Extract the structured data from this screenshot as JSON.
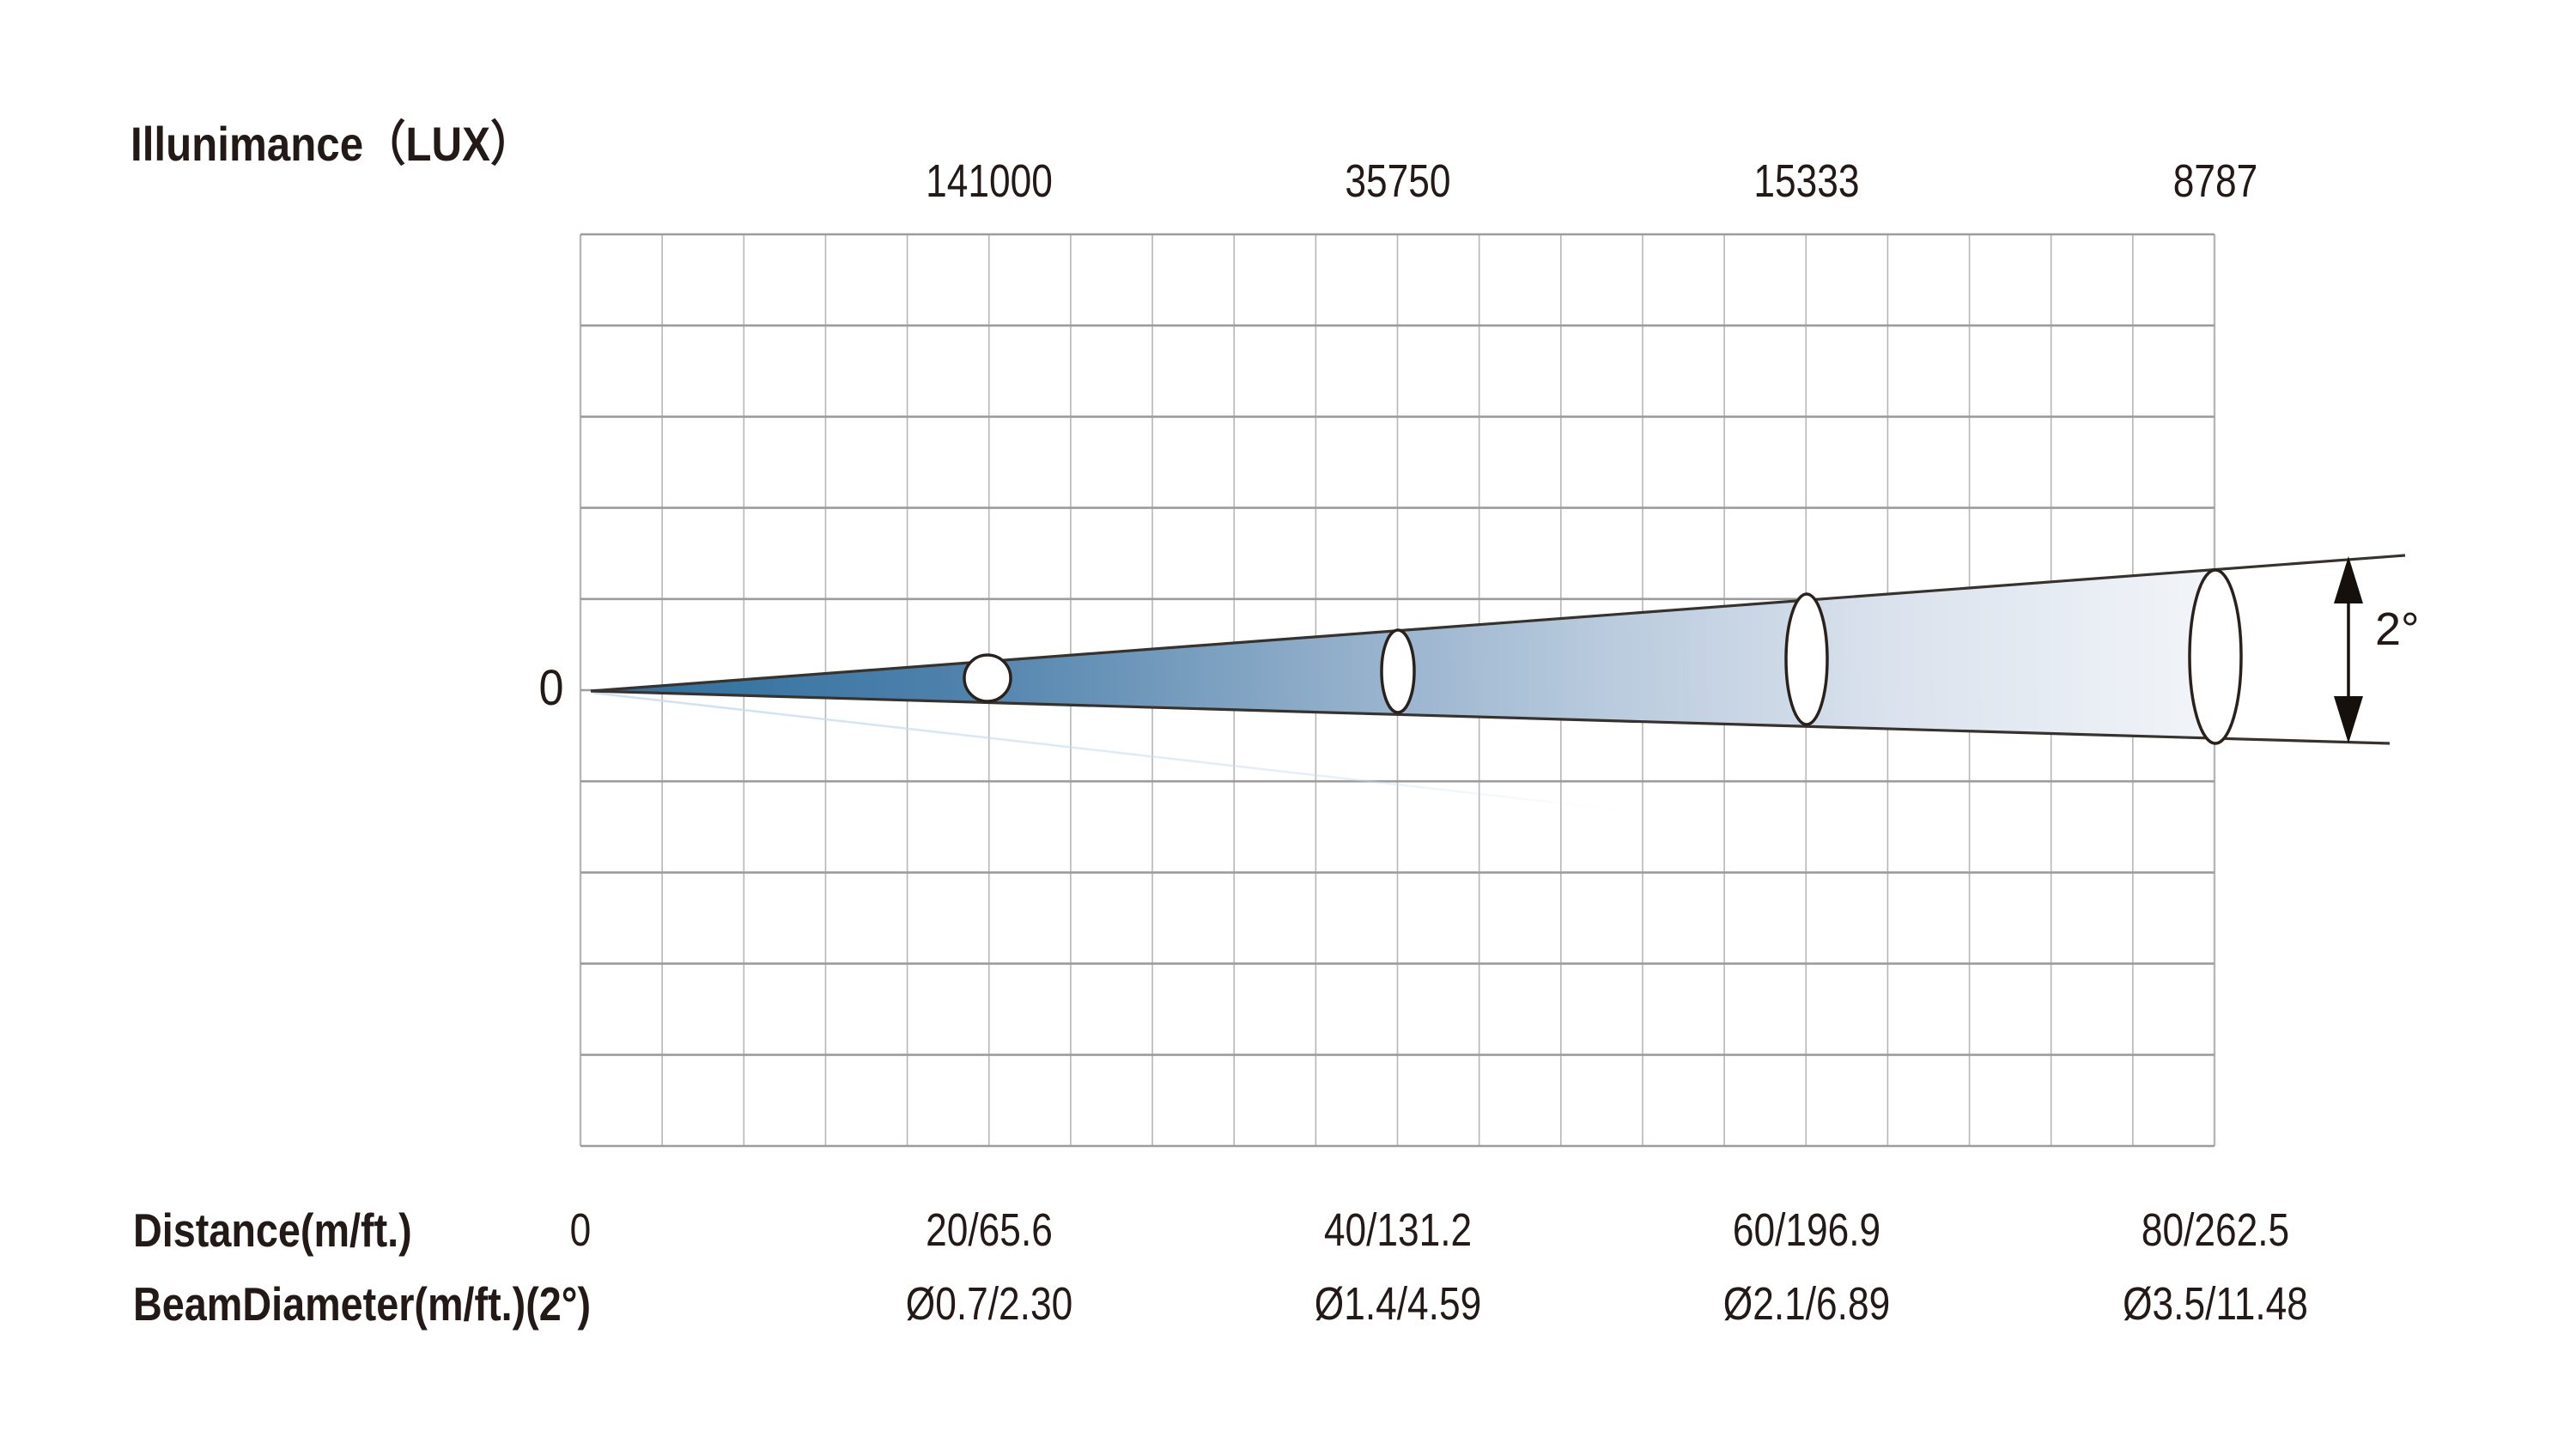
{
  "page": {
    "background": "#ffffff"
  },
  "chart_data": {
    "type": "beam-diagram",
    "title": "Illunimance（LUX）",
    "beam_angle_label": "2°",
    "beam_angle_deg": 2,
    "axis": {
      "origin_illuminance": "0",
      "distance_row_label": "Distance(m/ft.)",
      "diameter_row_label": "BeamDiameter(m/ft.)(2°)",
      "distance_origin": "0"
    },
    "points": [
      {
        "distance_m_ft": "20/65.6",
        "illuminance_lux": "141000",
        "beam_diameter_m_ft": "Ø0.7/2.30"
      },
      {
        "distance_m_ft": "40/131.2",
        "illuminance_lux": "35750",
        "beam_diameter_m_ft": "Ø1.4/4.59"
      },
      {
        "distance_m_ft": "60/196.9",
        "illuminance_lux": "15333",
        "beam_diameter_m_ft": "Ø2.1/6.89"
      },
      {
        "distance_m_ft": "80/262.5",
        "illuminance_lux": "8787",
        "beam_diameter_m_ft": "Ø3.5/11.48"
      }
    ],
    "grid": {
      "columns": 20,
      "rows": 10,
      "legend": "none",
      "gridlines": true
    },
    "colors": {
      "beam_start": "#2d6e9d",
      "beam_end": "#f2f5f9",
      "beam_edge": "#38322e",
      "grid_vertical": "#b7b7b7",
      "grid_horizontal": "#9c9c9c",
      "text": "#231916",
      "faint_line": "#c7dcf1"
    }
  }
}
